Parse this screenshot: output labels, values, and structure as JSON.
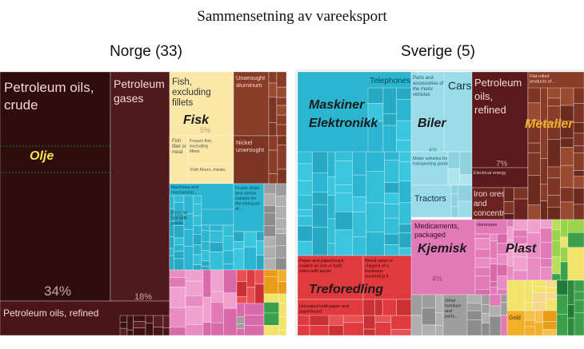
{
  "title": "Sammensetning av vareeksport",
  "chart_data": [
    {
      "type": "treemap",
      "title": "Norge (33)",
      "tiles": [
        {
          "label": "Petroleum oils, crude",
          "share": "34%",
          "color": "#2f0c0e"
        },
        {
          "label": "Petroleum gases",
          "share": "18%",
          "color": "#501a1c"
        },
        {
          "label": "Petroleum oils, refined",
          "share": "",
          "color": "#4a1518"
        },
        {
          "label": "Fish, excluding fillets",
          "share": "5%",
          "color": "#fbe7a8"
        },
        {
          "label": "Unwrought aluminum",
          "share": "",
          "color": "#8a3d26"
        },
        {
          "label": "Nickel unwrought",
          "share": "",
          "color": "#7c3424"
        },
        {
          "label": "Fish fillet or meat",
          "share": "",
          "color": "#fbe7a8"
        },
        {
          "label": "Frozen fish, excluding fillets",
          "share": "",
          "color": "#fbe7a8"
        },
        {
          "label": "Fish flours, meals..",
          "share": "",
          "color": "#fbe7a8"
        },
        {
          "label": "Machines and mechanical...",
          "share": "",
          "color": "#2bb5d0"
        },
        {
          "label": "Cruise ships and similar vessels for the transport of...",
          "share": "",
          "color": "#2bb5d0"
        },
        {
          "label": "Parts for use with hoists...",
          "share": "",
          "color": "#2bb5d0"
        }
      ],
      "overlays": [
        "Olje",
        "Fisk"
      ]
    },
    {
      "type": "treemap",
      "title": "Sverige (5)",
      "tiles": [
        {
          "label": "Telephones",
          "share": "",
          "color": "#2bb5d0"
        },
        {
          "label": "Parts and accessories of the motor vehicles",
          "share": "4%",
          "color": "#9cdce8"
        },
        {
          "label": "Cars",
          "share": "",
          "color": "#9cdce8"
        },
        {
          "label": "Motor vehicles for transporting goods",
          "share": "",
          "color": "#9cdce8"
        },
        {
          "label": "Tractors",
          "share": "",
          "color": "#9cdce8"
        },
        {
          "label": "Petroleum oils, refined",
          "share": "7%",
          "color": "#5a1a1c"
        },
        {
          "label": "Electrical energy",
          "share": "",
          "color": "#5a1a1c"
        },
        {
          "label": "Iron ores and concentrates",
          "share": "",
          "color": "#6a2420"
        },
        {
          "label": "Flat-rolled products of...",
          "share": "",
          "color": "#8a3d26"
        },
        {
          "label": "Medicaments, packaged",
          "share": "4%",
          "color": "#e27ab8"
        },
        {
          "label": "Hormones",
          "share": "",
          "color": "#e27ab8"
        },
        {
          "label": "Paper and paperboard, coated on one or both sides with kaolin",
          "share": "",
          "color": "#e03a3e"
        },
        {
          "label": "Wood sawn or chipped of a thickness exceeding 6",
          "share": "",
          "color": "#e03a3e"
        },
        {
          "label": "Uncoated kraft paper and paperboard",
          "share": "",
          "color": "#e03a3e"
        },
        {
          "label": "Other furniture and parts...",
          "share": "",
          "color": "#9e9e9e"
        },
        {
          "label": "Gold",
          "share": "",
          "color": "#f2b02a"
        }
      ],
      "overlays": [
        "Maskiner",
        "Elektronikk",
        "Biler",
        "Metaller",
        "Kjemisk",
        "Plast",
        "Treforedling"
      ]
    }
  ]
}
